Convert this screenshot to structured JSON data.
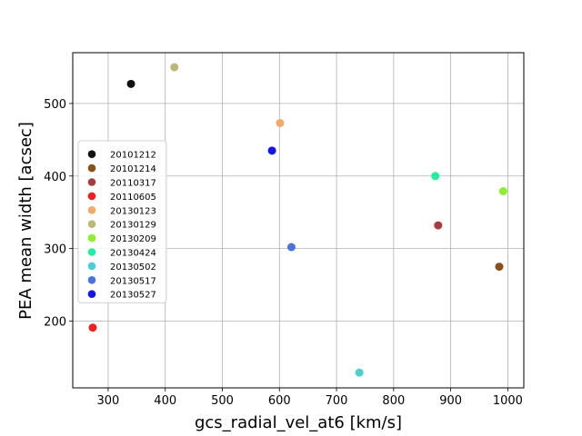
{
  "chart_data": {
    "type": "scatter",
    "title": "",
    "xlabel": "gcs_radial_vel_at6 [km/s]",
    "ylabel": "PEA mean width [acsec]",
    "xlim": [
      238,
      1028
    ],
    "ylim": [
      108,
      570
    ],
    "xticks": [
      300,
      400,
      500,
      600,
      700,
      800,
      900,
      1000
    ],
    "yticks": [
      200,
      300,
      400,
      500
    ],
    "grid": true,
    "legend_position": "center-left",
    "series": [
      {
        "name": "20101212",
        "color": "#111111",
        "x": [
          340
        ],
        "y": [
          527
        ]
      },
      {
        "name": "20101214",
        "color": "#8b4f1a",
        "x": [
          985
        ],
        "y": [
          275
        ]
      },
      {
        "name": "20110317",
        "color": "#a83c3c",
        "x": [
          878
        ],
        "y": [
          332
        ]
      },
      {
        "name": "20110605",
        "color": "#f02020",
        "x": [
          273
        ],
        "y": [
          191
        ]
      },
      {
        "name": "20130123",
        "color": "#f4a86a",
        "x": [
          601
        ],
        "y": [
          473
        ]
      },
      {
        "name": "20130129",
        "color": "#bdb877",
        "x": [
          416
        ],
        "y": [
          550
        ]
      },
      {
        "name": "20130209",
        "color": "#8cf02e",
        "x": [
          992
        ],
        "y": [
          379
        ]
      },
      {
        "name": "20130424",
        "color": "#22ee9e",
        "x": [
          873
        ],
        "y": [
          400
        ]
      },
      {
        "name": "20130502",
        "color": "#4ccfd0",
        "x": [
          740
        ],
        "y": [
          129
        ]
      },
      {
        "name": "20130517",
        "color": "#4c72e0",
        "x": [
          621
        ],
        "y": [
          302
        ]
      },
      {
        "name": "20130527",
        "color": "#1414ee",
        "x": [
          587
        ],
        "y": [
          435
        ]
      }
    ]
  }
}
